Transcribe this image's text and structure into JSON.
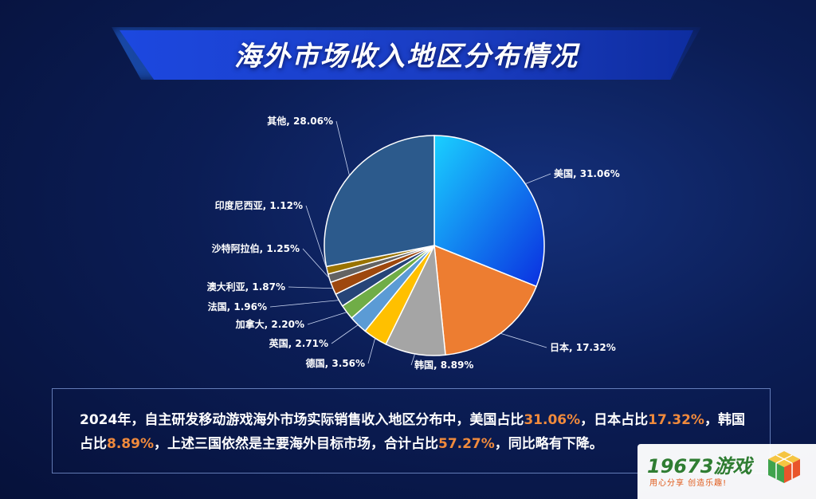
{
  "title": "海外市场收入地区分布情况",
  "chart_data": {
    "type": "pie",
    "start_angle_deg": 0,
    "direction": "clockwise",
    "slices": [
      {
        "label": "美国",
        "value": 31.06,
        "display": "美国, 31.06%",
        "color": "#1b67e8"
      },
      {
        "label": "日本",
        "value": 17.32,
        "display": "日本, 17.32%",
        "color": "#ed7d31"
      },
      {
        "label": "韩国",
        "value": 8.89,
        "display": "韩国, 8.89%",
        "color": "#a5a5a5"
      },
      {
        "label": "德国",
        "value": 3.56,
        "display": "德国, 3.56%",
        "color": "#ffc000"
      },
      {
        "label": "英国",
        "value": 2.71,
        "display": "英国, 2.71%",
        "color": "#5b9bd5"
      },
      {
        "label": "加拿大",
        "value": 2.2,
        "display": "加拿大, 2.20%",
        "color": "#70ad47"
      },
      {
        "label": "法国",
        "value": 1.96,
        "display": "法国, 1.96%",
        "color": "#264478"
      },
      {
        "label": "澳大利亚",
        "value": 1.87,
        "display": "澳大利亚, 1.87%",
        "color": "#9e480e"
      },
      {
        "label": "沙特阿拉伯",
        "value": 1.25,
        "display": "沙特阿拉伯, 1.25%",
        "color": "#636363"
      },
      {
        "label": "印度尼西亚",
        "value": 1.12,
        "display": "印度尼西亚, 1.12%",
        "color": "#997300"
      },
      {
        "label": "其他",
        "value": 28.06,
        "display": "其他, 28.06%",
        "color": "#2c5a8c"
      }
    ]
  },
  "description": {
    "part1": "2024年，自主研发移动游戏海外市场实际销售收入地区分布中，美国占比",
    "us_pct": "31.06%",
    "part2": "，日本占比",
    "jp_pct": "17.32%",
    "part3": "，韩国占比",
    "kr_pct": "8.89%",
    "part4": "，上述三国依然是主要海外目标市场，合计占比",
    "total_pct": "57.27%",
    "part5": "，同比略有下降。"
  },
  "watermark": {
    "brand": "19673游戏",
    "slogan": "用心分享 创造乐趣!"
  }
}
